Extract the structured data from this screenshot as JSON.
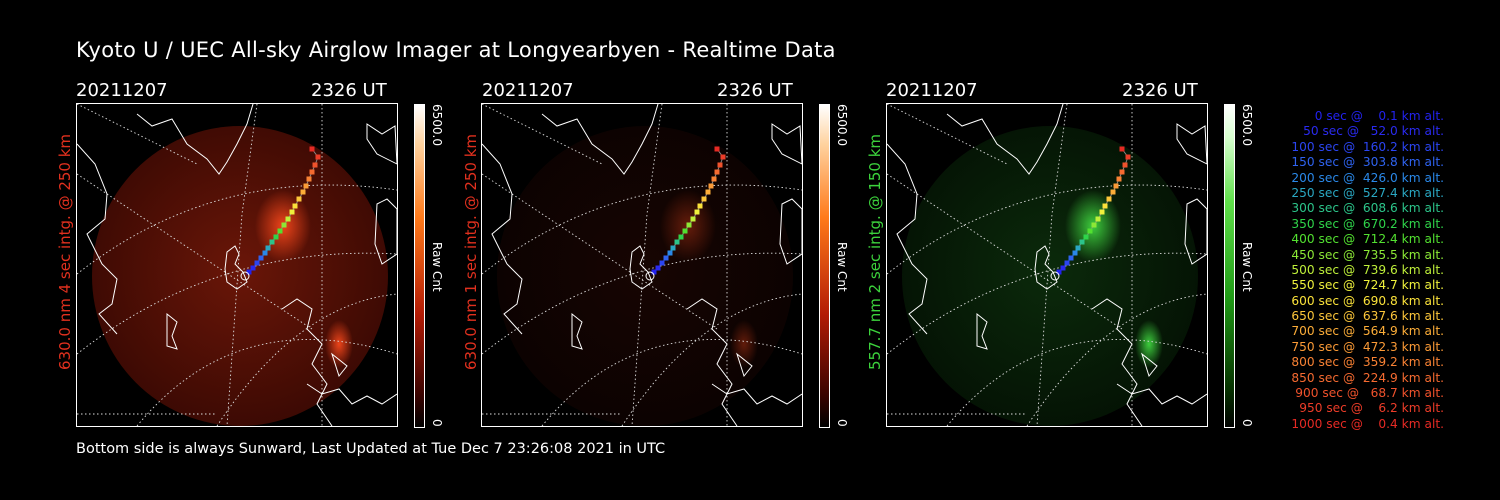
{
  "title": "Kyoto U / UEC All-sky Airglow Imager at Longyearbyen - Realtime Data",
  "panels": [
    {
      "date": "20211207",
      "time": "2326 UT",
      "label": "630.0 nm 4 sec intg. @ 250 km",
      "label_color": "#e0301e",
      "cbar_max": "6500.0",
      "cbar_min": "0",
      "cbar_unit": "Raw Cnt",
      "tint": "#ff4a1c",
      "glow": "red"
    },
    {
      "date": "20211207",
      "time": "2326 UT",
      "label": "630.0 nm 1 sec intg. @ 250 km",
      "label_color": "#e0301e",
      "cbar_max": "6500.0",
      "cbar_min": "0",
      "cbar_unit": "Raw Cnt",
      "tint": "#ff4a1c",
      "glow": "dim"
    },
    {
      "date": "20211207",
      "time": "2326 UT",
      "label": "557.7 nm 2 sec intg. @ 150 km",
      "label_color": "#3cd23c",
      "cbar_max": "6500.0",
      "cbar_min": "0",
      "cbar_unit": "Raw Cnt",
      "tint": "#43e043",
      "glow": "green"
    }
  ],
  "footer": "Bottom side is always Sunward, Last Updated at Tue Dec  7 23:26:08 2021 in UTC",
  "legend": [
    {
      "text": "0 sec @    0.1 km alt.",
      "color": "#2222ee"
    },
    {
      "text": "50 sec @   52.0 km alt.",
      "color": "#2a2af0"
    },
    {
      "text": "100 sec @  160.2 km alt.",
      "color": "#2b45f2"
    },
    {
      "text": "150 sec @  303.8 km alt.",
      "color": "#2f63f0"
    },
    {
      "text": "200 sec @  426.0 km alt.",
      "color": "#2a88e8"
    },
    {
      "text": "250 sec @  527.4 km alt.",
      "color": "#2aa7c2"
    },
    {
      "text": "300 sec @  608.6 km alt.",
      "color": "#2cc48a"
    },
    {
      "text": "350 sec @  670.2 km alt.",
      "color": "#2fd44a"
    },
    {
      "text": "400 sec @  712.4 km alt.",
      "color": "#52e030"
    },
    {
      "text": "450 sec @  735.5 km alt.",
      "color": "#8ce836"
    },
    {
      "text": "500 sec @  739.6 km alt.",
      "color": "#bff03a"
    },
    {
      "text": "550 sec @  724.7 km alt.",
      "color": "#eef03c"
    },
    {
      "text": "600 sec @  690.8 km alt.",
      "color": "#fbe23a"
    },
    {
      "text": "650 sec @  637.6 km alt.",
      "color": "#fcc63a"
    },
    {
      "text": "700 sec @  564.9 km alt.",
      "color": "#fcad38"
    },
    {
      "text": "750 sec @  472.3 km alt.",
      "color": "#fb9a36"
    },
    {
      "text": "800 sec @  359.2 km alt.",
      "color": "#f98234"
    },
    {
      "text": "850 sec @  224.9 km alt.",
      "color": "#f56a30"
    },
    {
      "text": "900 sec @   68.7 km alt.",
      "color": "#f0522c"
    },
    {
      "text": "950 sec @    6.2 km alt.",
      "color": "#ec3c28"
    },
    {
      "text": "1000 sec @    0.4 km alt.",
      "color": "#e62a24"
    }
  ]
}
